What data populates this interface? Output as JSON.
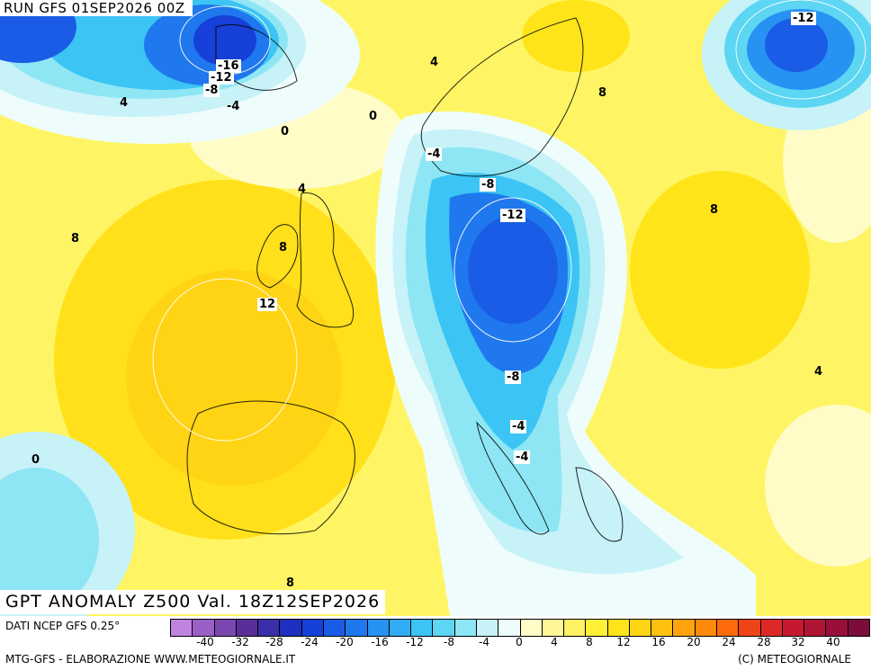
{
  "header": {
    "run": "RUN GFS 01SEP2026 00Z"
  },
  "title": {
    "text": "GPT ANOMALY Z500 Val. 18Z12SEP2026"
  },
  "legend": {
    "source": "DATI NCEP GFS 0.25°",
    "credit_left": "MTG-GFS - ELABORAZIONE WWW.METEOGIORNALE.IT",
    "credit_right": "(C) METEOGIORNALE",
    "tick_labels": [
      "-40",
      "-32",
      "-28",
      "-24",
      "-20",
      "-16",
      "-12",
      "-8",
      "-4",
      "0",
      "4",
      "8",
      "12",
      "16",
      "20",
      "24",
      "28",
      "32",
      "40"
    ],
    "colors": [
      "#c084e0",
      "#9b5fc8",
      "#7a47b0",
      "#5a2e98",
      "#3a2fa8",
      "#1f2fc0",
      "#1640d8",
      "#1a5ce6",
      "#1f78ee",
      "#2892f2",
      "#30acf4",
      "#3cc4f4",
      "#5cd6f2",
      "#8ee6f4",
      "#c6f2f8",
      "#eefcfc",
      "#fffcc8",
      "#fff698",
      "#fff264",
      "#fff036",
      "#ffe41a",
      "#ffd414",
      "#ffc010",
      "#ffa40c",
      "#ff8a0a",
      "#ff6a0a",
      "#f04418",
      "#de2828",
      "#c81830",
      "#b01434",
      "#98103a",
      "#7c0c3c"
    ]
  },
  "contour_labels": [
    {
      "text": "-12",
      "box": true
    },
    {
      "text": "-16",
      "box": true
    },
    {
      "text": "-12",
      "box": true
    },
    {
      "text": "-8",
      "box": true
    },
    {
      "text": "-4",
      "box": false
    },
    {
      "text": "4",
      "box": false
    },
    {
      "text": "0",
      "box": false
    },
    {
      "text": "0",
      "box": false
    },
    {
      "text": "4",
      "box": false
    },
    {
      "text": "8",
      "box": false
    },
    {
      "text": "-4",
      "box": true
    },
    {
      "text": "-8",
      "box": true
    },
    {
      "text": "-12",
      "box": true
    },
    {
      "text": "8",
      "box": false
    },
    {
      "text": "4",
      "box": false
    },
    {
      "text": "8",
      "box": false
    },
    {
      "text": "8",
      "box": false
    },
    {
      "text": "12",
      "box": true
    },
    {
      "text": "4",
      "box": false
    },
    {
      "text": "-8",
      "box": true
    },
    {
      "text": "-4",
      "box": true
    },
    {
      "text": "-4",
      "box": true
    },
    {
      "text": "0",
      "box": false
    },
    {
      "text": "8",
      "box": false
    }
  ]
}
